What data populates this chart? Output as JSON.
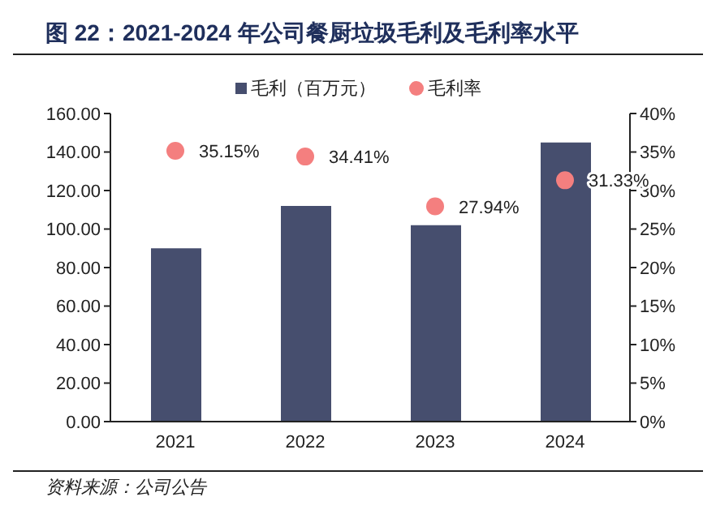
{
  "chart_data": {
    "type": "bar",
    "title": "图 22：2021-2024 年公司餐厨垃圾毛利及毛利率水平",
    "categories": [
      "2021",
      "2022",
      "2023",
      "2024"
    ],
    "series": [
      {
        "name": "毛利（百万元）",
        "color": "#464e6e",
        "values": [
          90,
          112,
          102,
          145
        ]
      },
      {
        "name": "毛利率",
        "type": "scatter",
        "axis": "y2",
        "color": "#f47f7f",
        "values": [
          35.15,
          34.41,
          27.94,
          31.33
        ],
        "value_labels": [
          "35.15%",
          "34.41%",
          "27.94%",
          "31.33%"
        ]
      }
    ],
    "ylim": [
      0,
      160
    ],
    "yticks": [
      {
        "value": 0,
        "label": "0.00"
      },
      {
        "value": 20,
        "label": "20.00"
      },
      {
        "value": 40,
        "label": "40.00"
      },
      {
        "value": 60,
        "label": "60.00"
      },
      {
        "value": 80,
        "label": "80.00"
      },
      {
        "value": 100,
        "label": "100.00"
      },
      {
        "value": 120,
        "label": "120.00"
      },
      {
        "value": 140,
        "label": "140.00"
      },
      {
        "value": 160,
        "label": "160.00"
      }
    ],
    "y2lim": [
      0,
      40
    ],
    "y2ticks": [
      {
        "value": 0,
        "label": "0%"
      },
      {
        "value": 5,
        "label": "5%"
      },
      {
        "value": 10,
        "label": "10%"
      },
      {
        "value": 15,
        "label": "15%"
      },
      {
        "value": 20,
        "label": "20%"
      },
      {
        "value": 25,
        "label": "25%"
      },
      {
        "value": 30,
        "label": "30%"
      },
      {
        "value": 35,
        "label": "35%"
      },
      {
        "value": 40,
        "label": "40%"
      }
    ],
    "legend": "top",
    "grid": false,
    "marker": "circle",
    "annotations": [
      "资料来源：公司公告"
    ]
  }
}
